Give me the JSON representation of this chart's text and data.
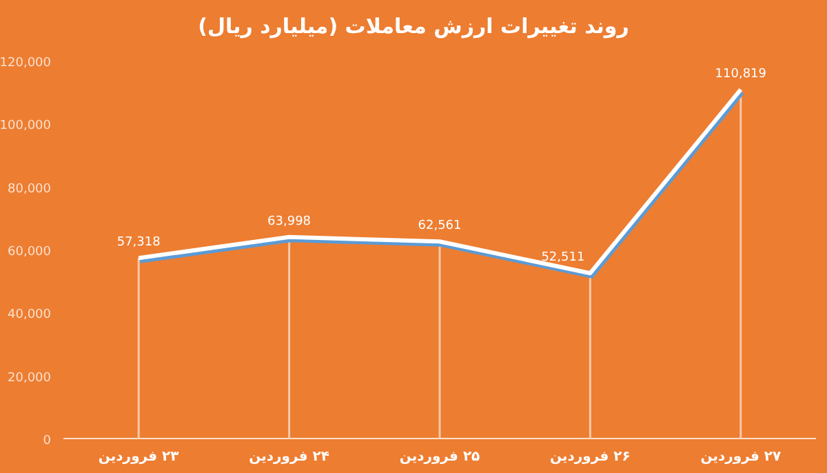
{
  "chart_data": {
    "type": "line",
    "title": "روند تغییرات ارزش معاملات (میلیارد ریال)",
    "categories": [
      "۲۳ فروردین",
      "۲۴ فروردین",
      "۲۵ فروردین",
      "۲۶ فروردین",
      "۲۷ فروردین"
    ],
    "series": [
      {
        "color": "#ffffff",
        "values": [
          57318,
          63998,
          62561,
          52511,
          110819
        ],
        "value_labels": [
          "57,318",
          "63,998",
          "62,561",
          "52,511",
          "110,819"
        ]
      },
      {
        "type": "bar",
        "color": "#f8c9a8",
        "values": [
          57318,
          63998,
          62561,
          52511,
          110819
        ]
      }
    ],
    "ylim": [
      0,
      120000
    ],
    "yticks": [
      {
        "value": 0,
        "label": "0"
      },
      {
        "value": 20000,
        "label": "20,000"
      },
      {
        "value": 40000,
        "label": "40,000"
      },
      {
        "value": 60000,
        "label": "60,000"
      },
      {
        "value": 80000,
        "label": "80,000"
      },
      {
        "value": 100000,
        "label": "100,000"
      },
      {
        "value": 120000,
        "label": "120,000"
      }
    ],
    "marker": "none",
    "line_style": "solid",
    "grid": false
  }
}
